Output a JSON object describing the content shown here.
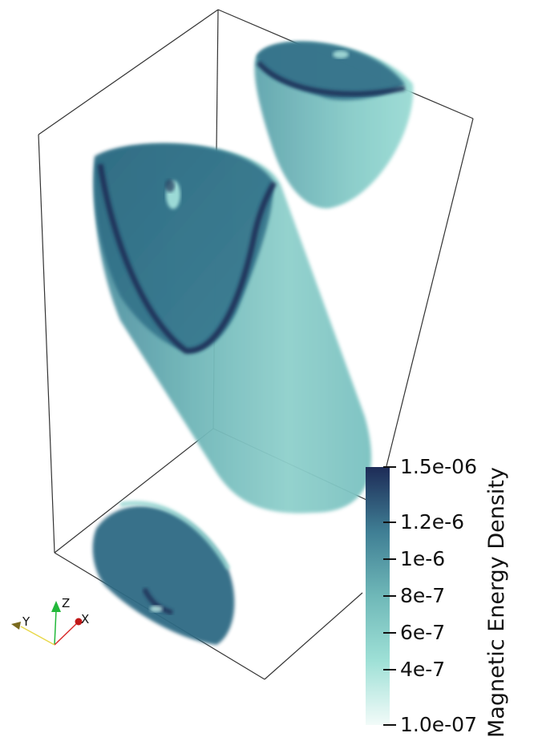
{
  "colorbar": {
    "title": "Magnetic Energy Density",
    "ticks": [
      {
        "label": "1.5e-06",
        "value": 1.5e-06
      },
      {
        "label": "1.2e-6",
        "value": 1.2e-06
      },
      {
        "label": "1e-6",
        "value": 1e-06
      },
      {
        "label": "8e-7",
        "value": 8e-07
      },
      {
        "label": "6e-7",
        "value": 6e-07
      },
      {
        "label": "4e-7",
        "value": 4e-07
      },
      {
        "label": "1.0e-07",
        "value": 1e-07
      }
    ],
    "range": [
      1e-07,
      1.5e-06
    ],
    "colors": {
      "low": "#f2fbf9",
      "mid_low": "#9ee0d6",
      "mid": "#6fb8b8",
      "mid_high": "#3f7e94",
      "high": "#1d2b57"
    }
  },
  "orientation_axes": {
    "x_label": "X",
    "y_label": "Y",
    "z_label": "Z",
    "x_color": "#d92b2b",
    "y_color": "#e8d84a",
    "z_color": "#22b83a"
  },
  "render": {
    "bounding_box_color": "#333333",
    "volume_dark": "#2f5f7a",
    "volume_light": "#8fd3cf"
  }
}
